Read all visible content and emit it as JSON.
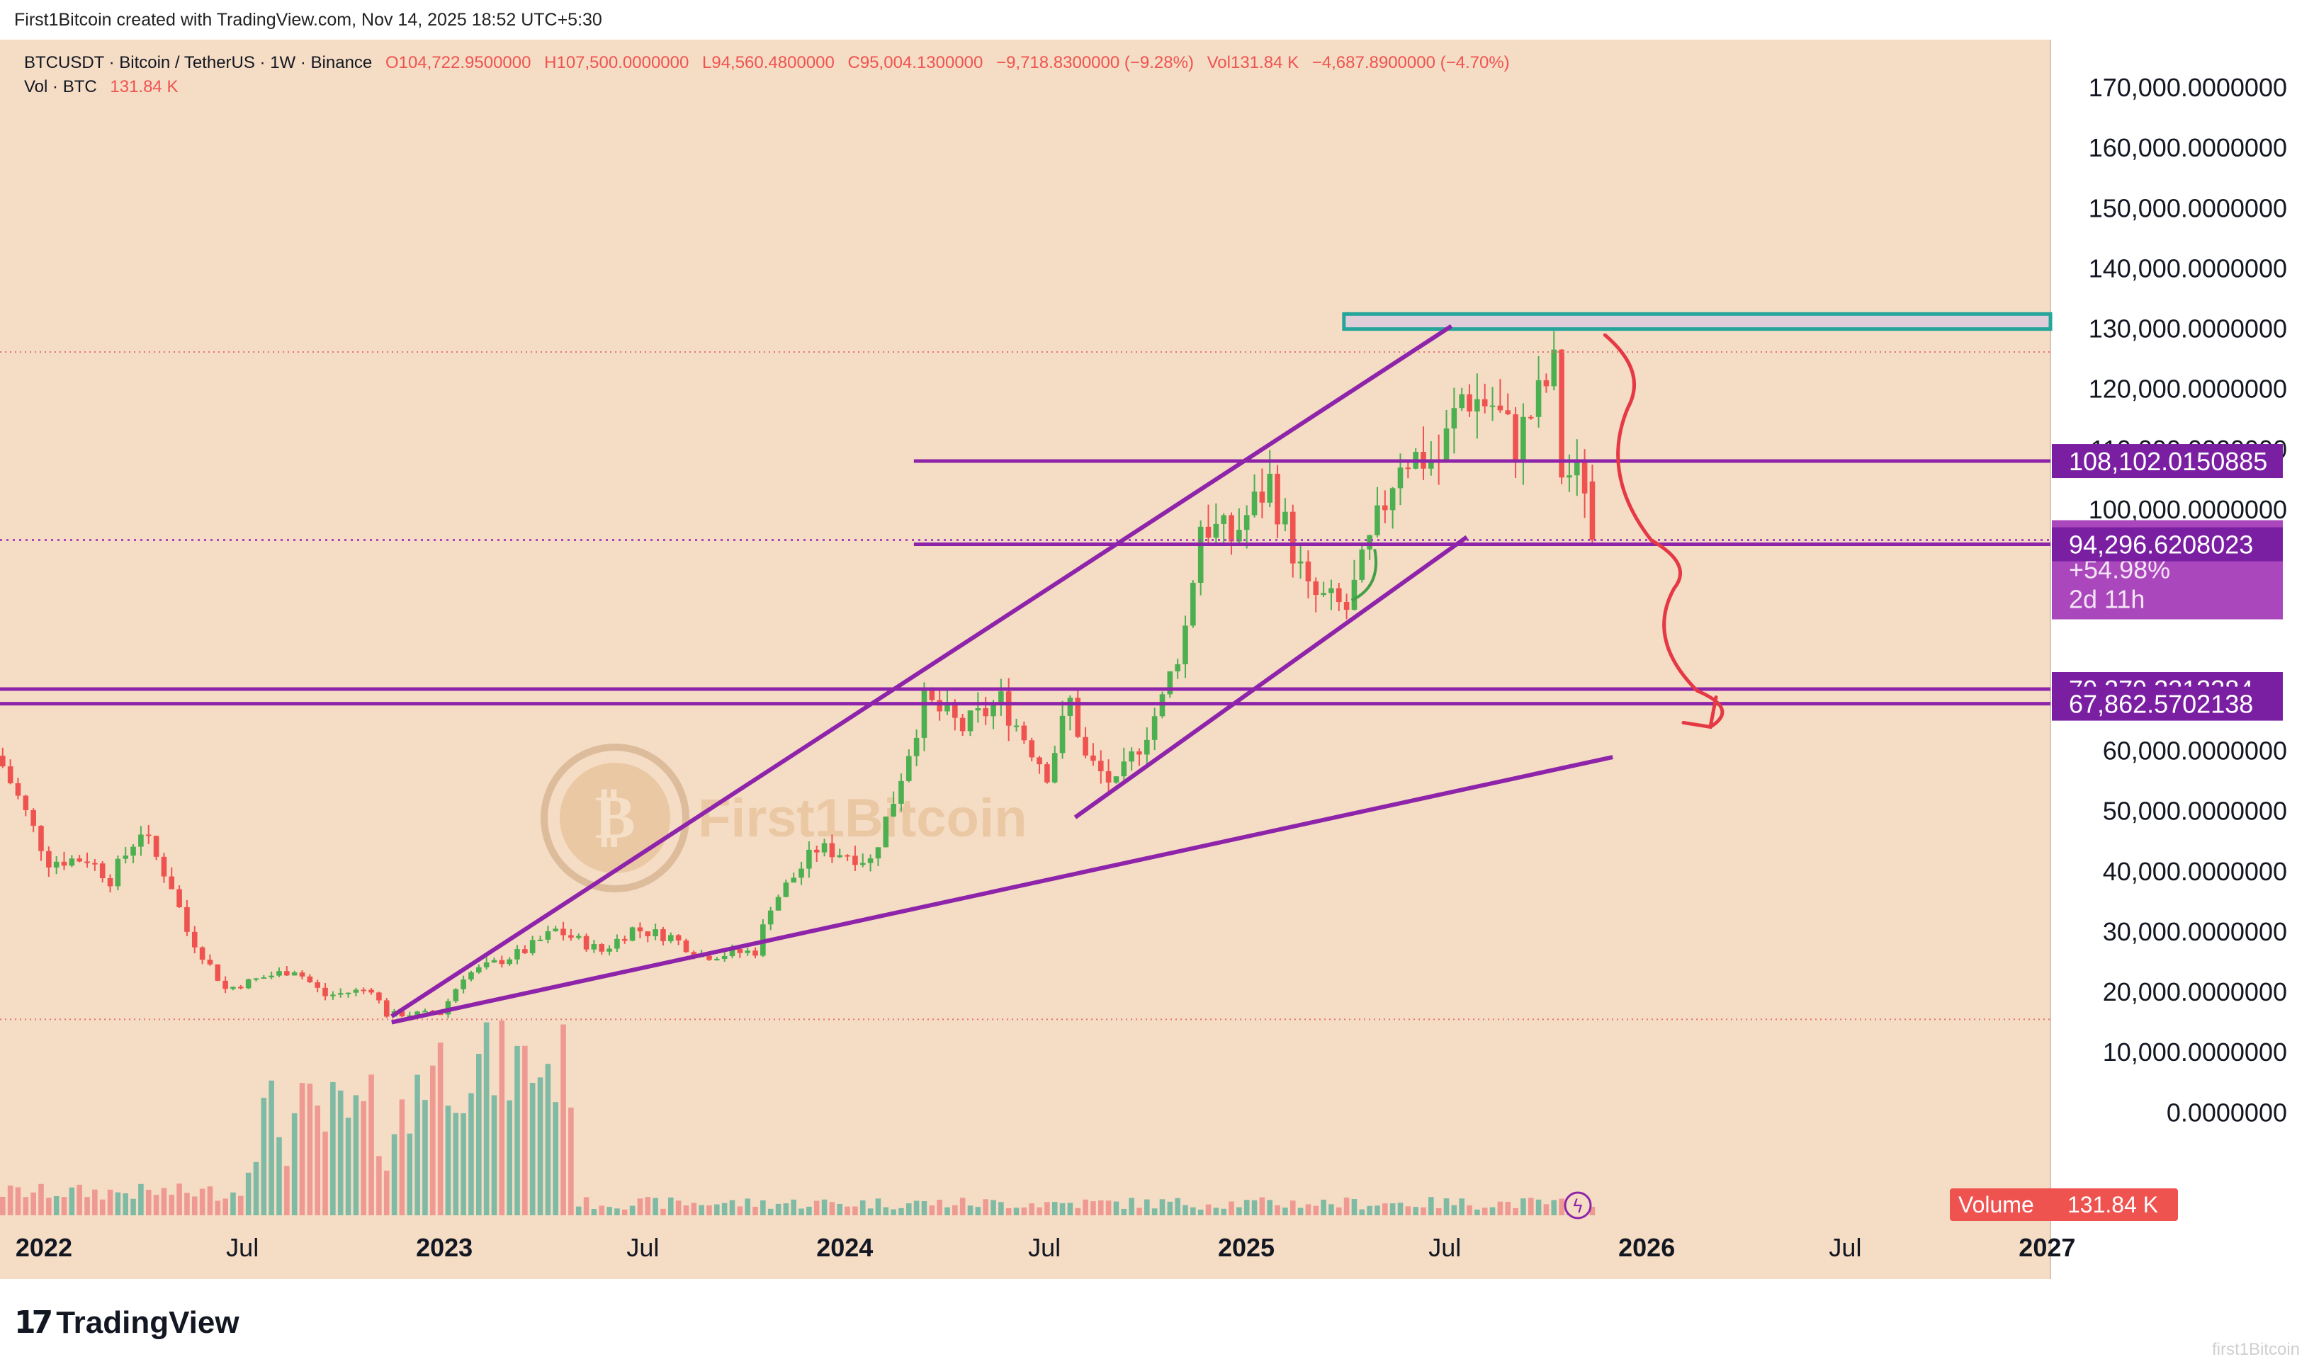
{
  "header_note": "First1Bitcoin created with TradingView.com, Nov 14, 2025 18:52 UTC+5:30",
  "legend": {
    "symbol": "BTCUSDT · Bitcoin / TetherUS · 1W · Binance",
    "open": "O104,722.9500000",
    "high": "H107,500.0000000",
    "low": "L94,560.4800000",
    "close": "C95,004.1300000",
    "change": "−9,718.8300000 (−9.28%)",
    "vol": "Vol131.84 K",
    "vol_change": "−4,687.8900000 (−4.70%)",
    "vol_line_label": "Vol · BTC",
    "vol_line_value": "131.84 K"
  },
  "watermark": "First1Bitcoin",
  "footer_brand": "TradingView",
  "footer_watermark": "first1Bitcoin",
  "colors": {
    "background": "#f5dcc4",
    "up": "#4caf50",
    "down": "#ef5350",
    "vol_up": "#7fbba4",
    "vol_down": "#ee9a92",
    "drawing": "#8e24aa",
    "badge": "#7b1fa2",
    "price_badge": "#ab47bc",
    "zone": "#26a69a",
    "arrow": "#e53945",
    "curve": "#43a047",
    "volume_label": "#ef5350"
  },
  "chart_data": {
    "type": "candlestick",
    "interval": "1W",
    "x": {
      "start": "2021-11-22",
      "end": "2027-01-04",
      "ticks": [
        {
          "date": "2022-01-01",
          "label": "2022",
          "bold": true
        },
        {
          "date": "2022-07-01",
          "label": "Jul",
          "bold": false
        },
        {
          "date": "2023-01-01",
          "label": "2023",
          "bold": true
        },
        {
          "date": "2023-07-01",
          "label": "Jul",
          "bold": false
        },
        {
          "date": "2024-01-01",
          "label": "2024",
          "bold": true
        },
        {
          "date": "2024-07-01",
          "label": "Jul",
          "bold": false
        },
        {
          "date": "2025-01-01",
          "label": "2025",
          "bold": true
        },
        {
          "date": "2025-07-01",
          "label": "Jul",
          "bold": false
        },
        {
          "date": "2026-01-01",
          "label": "2026",
          "bold": true
        },
        {
          "date": "2026-07-01",
          "label": "Jul",
          "bold": false
        },
        {
          "date": "2027-01-01",
          "label": "2027",
          "bold": true
        }
      ]
    },
    "y": {
      "range": [
        -17000,
        178000
      ],
      "ticks": [
        {
          "value": 170000,
          "label": "170,000.0000000"
        },
        {
          "value": 160000,
          "label": "160,000.0000000"
        },
        {
          "value": 150000,
          "label": "150,000.0000000"
        },
        {
          "value": 140000,
          "label": "140,000.0000000"
        },
        {
          "value": 130000,
          "label": "130,000.0000000"
        },
        {
          "value": 120000,
          "label": "120,000.0000000"
        },
        {
          "value": 110000,
          "label": "110,000.0000000"
        },
        {
          "value": 100000,
          "label": "100,000.0000000"
        },
        {
          "value": 60000,
          "label": "60,000.0000000"
        },
        {
          "value": 50000,
          "label": "50,000.0000000"
        },
        {
          "value": 40000,
          "label": "40,000.0000000"
        },
        {
          "value": 30000,
          "label": "30,000.0000000"
        },
        {
          "value": 20000,
          "label": "20,000.0000000"
        },
        {
          "value": 10000,
          "label": "10,000.0000000"
        },
        {
          "value": 0,
          "label": "0.0000000"
        }
      ]
    },
    "closes": [
      {
        "date": "2021-11-22",
        "close": 57500
      },
      {
        "date": "2022-01-03",
        "close": 41800
      },
      {
        "date": "2022-02-07",
        "close": 42200
      },
      {
        "date": "2022-02-28",
        "close": 38800
      },
      {
        "date": "2022-03-28",
        "close": 46900
      },
      {
        "date": "2022-04-25",
        "close": 37700
      },
      {
        "date": "2022-05-09",
        "close": 30100
      },
      {
        "date": "2022-06-13",
        "close": 20500
      },
      {
        "date": "2022-07-18",
        "close": 22500
      },
      {
        "date": "2022-08-15",
        "close": 23800
      },
      {
        "date": "2022-09-12",
        "close": 19400
      },
      {
        "date": "2022-10-24",
        "close": 20600
      },
      {
        "date": "2022-11-07",
        "close": 16300
      },
      {
        "date": "2022-12-26",
        "close": 16500
      },
      {
        "date": "2023-01-16",
        "close": 22700
      },
      {
        "date": "2023-03-13",
        "close": 26900
      },
      {
        "date": "2023-04-10",
        "close": 30300
      },
      {
        "date": "2023-05-22",
        "close": 26800
      },
      {
        "date": "2023-06-19",
        "close": 30500
      },
      {
        "date": "2023-07-24",
        "close": 29200
      },
      {
        "date": "2023-08-21",
        "close": 26000
      },
      {
        "date": "2023-10-09",
        "close": 26800
      },
      {
        "date": "2023-10-23",
        "close": 34500
      },
      {
        "date": "2023-12-04",
        "close": 43800
      },
      {
        "date": "2024-01-01",
        "close": 43000
      },
      {
        "date": "2024-01-22",
        "close": 41800
      },
      {
        "date": "2024-02-12",
        "close": 52000
      },
      {
        "date": "2024-03-11",
        "close": 68400
      },
      {
        "date": "2024-04-15",
        "close": 63800
      },
      {
        "date": "2024-05-20",
        "close": 68300
      },
      {
        "date": "2024-07-01",
        "close": 56500
      },
      {
        "date": "2024-07-22",
        "close": 68200
      },
      {
        "date": "2024-08-05",
        "close": 58700
      },
      {
        "date": "2024-09-02",
        "close": 54000
      },
      {
        "date": "2024-10-14",
        "close": 68300
      },
      {
        "date": "2024-11-04",
        "close": 80500
      },
      {
        "date": "2024-11-18",
        "close": 97900
      },
      {
        "date": "2024-12-16",
        "close": 95300
      },
      {
        "date": "2025-01-20",
        "close": 104700
      },
      {
        "date": "2025-02-24",
        "close": 86000
      },
      {
        "date": "2025-03-31",
        "close": 83500
      },
      {
        "date": "2025-04-21",
        "close": 93900
      },
      {
        "date": "2025-05-19",
        "close": 109000
      },
      {
        "date": "2025-06-23",
        "close": 108300
      },
      {
        "date": "2025-07-14",
        "close": 119000
      },
      {
        "date": "2025-08-11",
        "close": 117500
      },
      {
        "date": "2025-09-01",
        "close": 111100
      },
      {
        "date": "2025-10-06",
        "close": 123300
      },
      {
        "date": "2025-10-13",
        "close": 106500
      },
      {
        "date": "2025-11-03",
        "close": 104700
      },
      {
        "date": "2025-11-10",
        "close": 95004
      }
    ],
    "series": [
      {
        "name": "BTCUSDT",
        "type": "candlestick"
      },
      {
        "name": "Volume",
        "type": "histogram",
        "last_value": "131.84 K"
      }
    ],
    "price_labels": [
      {
        "value": 108102.0150885,
        "label": "108,102.0150885",
        "style": "badge"
      },
      {
        "value": 95004.13,
        "label": "95,004.1300000",
        "extra": [
          "+54.98%",
          "2d 11h"
        ],
        "style": "price"
      },
      {
        "value": 94296.6208023,
        "label": "94,296.6208023",
        "style": "badge"
      },
      {
        "value": 70279.2213384,
        "label": "70,279.2213384",
        "style": "badge"
      },
      {
        "value": 67862.5702138,
        "label": "67,862.5702138",
        "style": "badge"
      }
    ],
    "volume_label": {
      "name": "Volume",
      "value": "131.84 K"
    },
    "drawings": {
      "upper_channel_line": [
        [
          "2022-11-14",
          16000
        ],
        [
          "2025-07-07",
          130500
        ]
      ],
      "lower_trendline_1": [
        [
          "2022-11-14",
          15000
        ],
        [
          "2025-12-01",
          59000
        ]
      ],
      "lower_trendline_2": [
        [
          "2024-07-29",
          49000
        ],
        [
          "2025-07-21",
          95500
        ]
      ],
      "resistance_line": {
        "value": 108102,
        "from": "2024-03-04"
      },
      "support_line": {
        "value": 94296,
        "from": "2024-03-04"
      },
      "range_lines": [
        70279,
        67862
      ],
      "zone": {
        "from": "2025-03-31",
        "top": 132500,
        "bottom": 130000
      },
      "dotted_levels": [
        126200,
        15500
      ],
      "dotted_price_level": 95004,
      "projected_path": [
        [
          "2025-11-24",
          129000
        ],
        [
          "2025-12-15",
          117000
        ],
        [
          "2026-01-05",
          95000
        ],
        [
          "2026-01-26",
          87000
        ],
        [
          "2026-02-16",
          70000
        ],
        [
          "2026-02-28",
          64000
        ]
      ],
      "projection_arrowhead": {
        "at": [
          "2026-02-28",
          64000
        ]
      },
      "green_curve": [
        [
          "2025-04-07",
          85000
        ],
        [
          "2025-04-28",
          93500
        ]
      ]
    }
  }
}
